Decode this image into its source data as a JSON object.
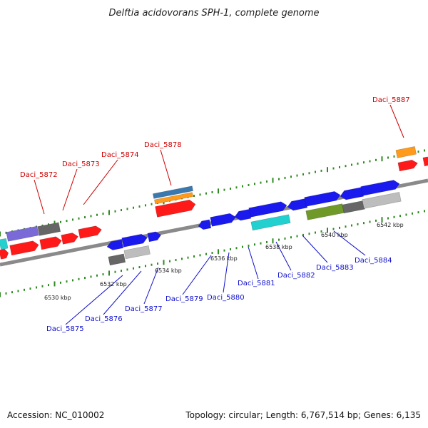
{
  "title": "Delftia acidovorans SPH-1, complete genome",
  "footer": {
    "accession": "Accession: NC_010002",
    "summary": "Topology: circular; Length: 6,767,514 bp; Genes: 6,135"
  },
  "colors": {
    "backbone": "#8a8a8a",
    "tick": "#2e8b20",
    "top_label": "#cc0000",
    "bottom_label": "#1010cc",
    "red": "#ff1a1a",
    "blue": "#1a1aee",
    "cyan": "#22d0d0",
    "purple": "#7a6ad8",
    "dark_gray": "#666666",
    "light_gray": "#bdbdbd",
    "orange": "#ff9a1a",
    "steel": "#3a78b0",
    "olive": "#6f9a2a"
  },
  "scale": {
    "unit": "kbp",
    "ticks": [
      {
        "label": "6530 kbp"
      },
      {
        "label": "6532 kbp"
      },
      {
        "label": "6534 kbp"
      },
      {
        "label": "6536 kbp"
      },
      {
        "label": "6538 kbp"
      },
      {
        "label": "6540 kbp"
      },
      {
        "label": "6542 kbp"
      }
    ]
  },
  "top_labels": [
    {
      "text": "Daci_5872"
    },
    {
      "text": "Daci_5873"
    },
    {
      "text": "Daci_5874"
    },
    {
      "text": "Daci_5878"
    },
    {
      "text": "Daci_5887"
    }
  ],
  "bottom_labels": [
    {
      "text": "Daci_5875"
    },
    {
      "text": "Daci_5876"
    },
    {
      "text": "Daci_5877"
    },
    {
      "text": "Daci_5879"
    },
    {
      "text": "Daci_5880"
    },
    {
      "text": "Daci_5881"
    },
    {
      "text": "Daci_5882"
    },
    {
      "text": "Daci_5883"
    },
    {
      "text": "Daci_5884"
    }
  ]
}
